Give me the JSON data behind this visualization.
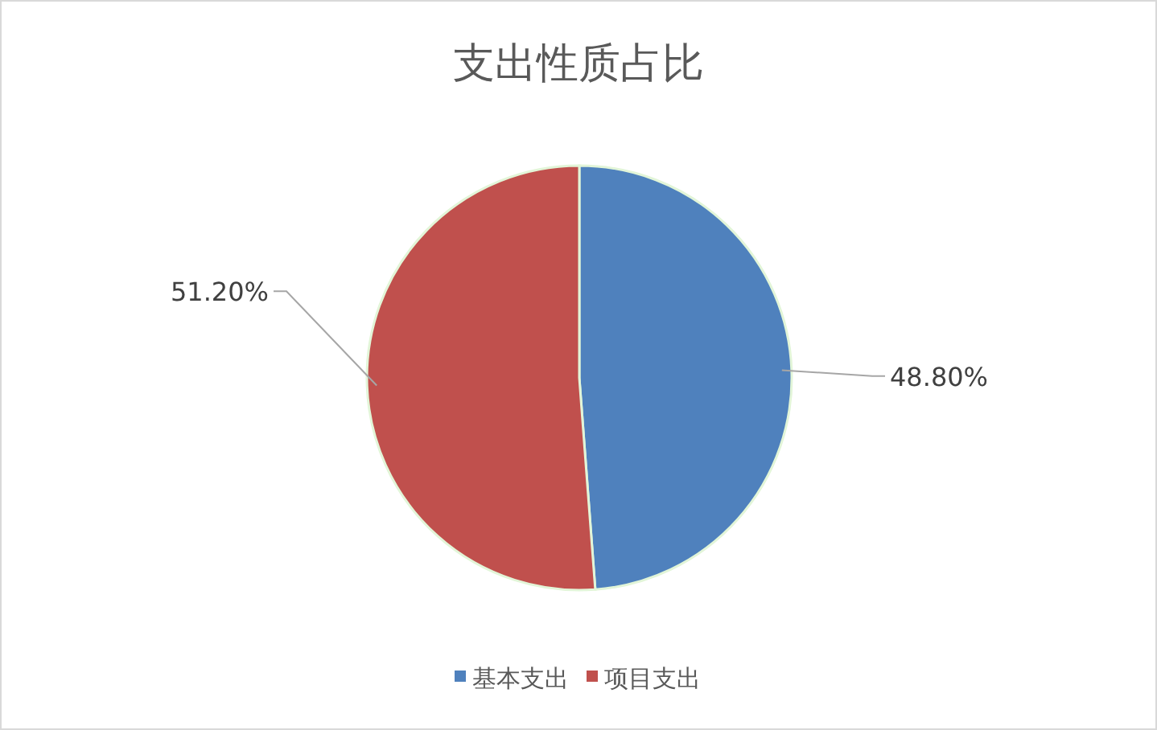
{
  "chart_data": {
    "type": "pie",
    "title": "支出性质占比",
    "categories": [
      "基本支出",
      "项目支出"
    ],
    "values": [
      48.8,
      51.2
    ],
    "colors": [
      "#4f81bd",
      "#c0504d"
    ],
    "value_labels": [
      "48.80%",
      "51.20%"
    ],
    "legend": "bottom"
  }
}
